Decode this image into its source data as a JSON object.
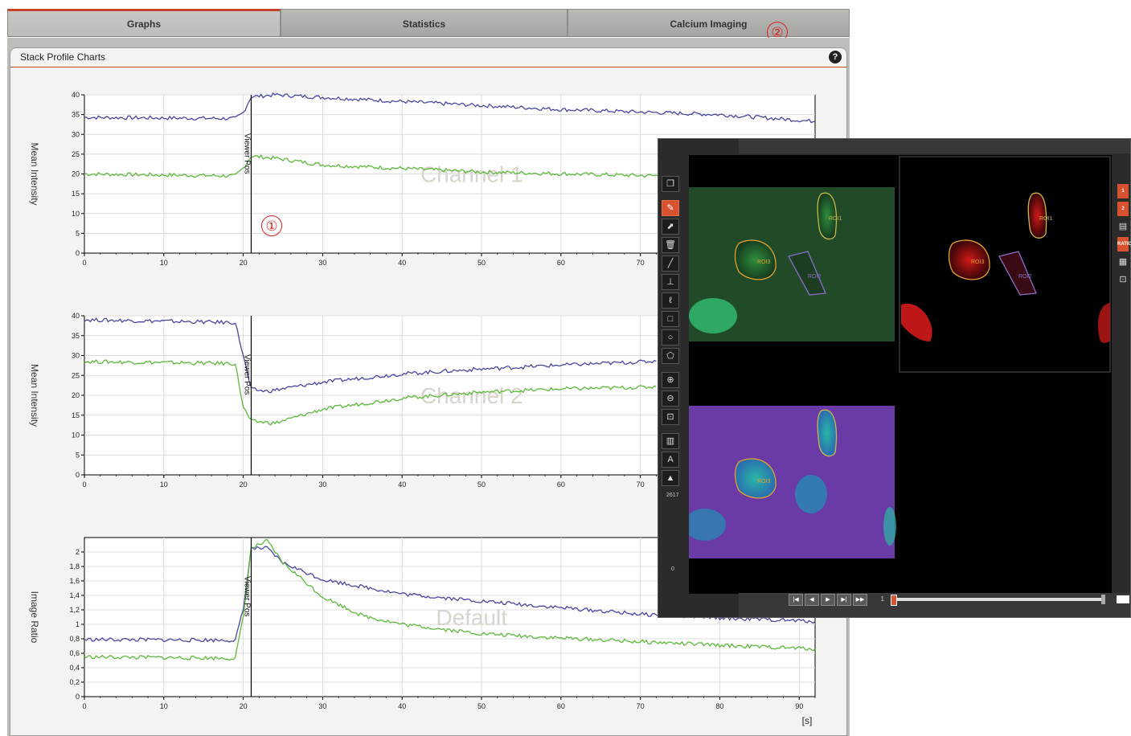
{
  "tabs": [
    {
      "label": "Graphs",
      "active": true
    },
    {
      "label": "Statistics",
      "active": false
    },
    {
      "label": "Calcium Imaging",
      "active": false
    }
  ],
  "markers": {
    "one": "①",
    "two": "②"
  },
  "panel": {
    "title": "Stack Profile Charts",
    "help_icon": "?"
  },
  "colors": {
    "accent": "#c4432c",
    "series_blue": "#4a45a4",
    "series_green": "#5cb83a"
  },
  "chart_data": [
    {
      "type": "line",
      "ylabel": "Mean Intensity",
      "watermark": "Channel 1",
      "cursor_label": "Viewer Pos",
      "cursor_x": 21,
      "xlim": [
        0,
        92
      ],
      "ylim": [
        0,
        40
      ],
      "yticks": [
        0,
        5,
        10,
        15,
        20,
        25,
        30,
        35,
        40
      ],
      "ytick_labels": [
        "0",
        "5",
        "10",
        "15",
        "20",
        "25",
        "30",
        "35",
        "40"
      ],
      "xticks": [
        0,
        10,
        20,
        30,
        40,
        50,
        60,
        70
      ],
      "xtick_labels": [
        "0",
        "10",
        "20",
        "30",
        "40",
        "50",
        "60",
        "70"
      ],
      "series": [
        {
          "color": "#4a45a4",
          "points": [
            [
              0,
              34.3
            ],
            [
              19,
              34.0
            ],
            [
              20,
              35.5
            ],
            [
              21,
              39.5
            ],
            [
              24,
              40.0
            ],
            [
              40,
              38.3
            ],
            [
              60,
              36.3
            ],
            [
              80,
              35.0
            ],
            [
              92,
              33.3
            ]
          ]
        },
        {
          "color": "#5cb83a",
          "points": [
            [
              0,
              20.0
            ],
            [
              19,
              19.5
            ],
            [
              20,
              21.5
            ],
            [
              21,
              24.5
            ],
            [
              24,
              24.0
            ],
            [
              30,
              22.3
            ],
            [
              50,
              20.5
            ],
            [
              70,
              19.6
            ],
            [
              92,
              19.5
            ]
          ]
        }
      ]
    },
    {
      "type": "line",
      "ylabel": "Mean Intensity",
      "watermark": "Channel 2",
      "cursor_label": "Viewer Pos",
      "cursor_x": 21,
      "xlim": [
        0,
        92
      ],
      "ylim": [
        0,
        40
      ],
      "yticks": [
        0,
        5,
        10,
        15,
        20,
        25,
        30,
        35,
        40
      ],
      "ytick_labels": [
        "0",
        "5",
        "10",
        "15",
        "20",
        "25",
        "30",
        "35",
        "40"
      ],
      "xticks": [
        0,
        10,
        20,
        30,
        40,
        50,
        60,
        70
      ],
      "xtick_labels": [
        "0",
        "10",
        "20",
        "30",
        "40",
        "50",
        "60",
        "70"
      ],
      "series": [
        {
          "color": "#4a45a4",
          "points": [
            [
              0,
              39.0
            ],
            [
              19,
              38.3
            ],
            [
              20,
              30.0
            ],
            [
              21,
              21.5
            ],
            [
              23,
              21.0
            ],
            [
              30,
              23.3
            ],
            [
              40,
              25.4
            ],
            [
              50,
              26.6
            ],
            [
              60,
              27.6
            ],
            [
              70,
              28.4
            ],
            [
              72,
              28.6
            ]
          ]
        },
        {
          "color": "#5cb83a",
          "points": [
            [
              0,
              28.5
            ],
            [
              19,
              28.0
            ],
            [
              20,
              17.0
            ],
            [
              21,
              13.5
            ],
            [
              24,
              13.0
            ],
            [
              30,
              16.5
            ],
            [
              40,
              19.3
            ],
            [
              50,
              20.8
            ],
            [
              60,
              21.6
            ],
            [
              70,
              22.0
            ],
            [
              72,
              22.2
            ]
          ]
        }
      ]
    },
    {
      "type": "line",
      "ylabel": "Image Ratio",
      "watermark": "Default",
      "cursor_label": "Viewer Pos",
      "cursor_x": 21,
      "xlabel": "[s]",
      "xlim": [
        0,
        92
      ],
      "ylim": [
        0,
        2.2
      ],
      "yticks": [
        0,
        0.2,
        0.4,
        0.6,
        0.8,
        1,
        1.2,
        1.4,
        1.6,
        1.8,
        2
      ],
      "ytick_labels": [
        "0",
        "0,2",
        "0,4",
        "0,6",
        "0,8",
        "1",
        "1,2",
        "1,4",
        "1,6",
        "1,8",
        "2"
      ],
      "xticks": [
        0,
        10,
        20,
        30,
        40,
        50,
        60,
        70,
        80,
        90
      ],
      "xtick_labels": [
        "0",
        "10",
        "20",
        "30",
        "40",
        "50",
        "60",
        "70",
        "80",
        "90"
      ],
      "series": [
        {
          "color": "#4a45a4",
          "points": [
            [
              0,
              0.79
            ],
            [
              19,
              0.78
            ],
            [
              20,
              1.2
            ],
            [
              21,
              2.05
            ],
            [
              23,
              2.05
            ],
            [
              25,
              1.85
            ],
            [
              30,
              1.62
            ],
            [
              40,
              1.42
            ],
            [
              50,
              1.32
            ],
            [
              60,
              1.23
            ],
            [
              70,
              1.14
            ],
            [
              80,
              1.09
            ],
            [
              92,
              1.04
            ]
          ]
        },
        {
          "color": "#5cb83a",
          "points": [
            [
              0,
              0.55
            ],
            [
              19,
              0.53
            ],
            [
              20,
              1.1
            ],
            [
              21,
              2.05
            ],
            [
              23,
              2.15
            ],
            [
              25,
              1.85
            ],
            [
              30,
              1.38
            ],
            [
              35,
              1.12
            ],
            [
              40,
              1.0
            ],
            [
              50,
              0.87
            ],
            [
              60,
              0.81
            ],
            [
              70,
              0.76
            ],
            [
              80,
              0.71
            ],
            [
              92,
              0.66
            ]
          ]
        }
      ]
    }
  ],
  "imaging": {
    "toolbar_icons": [
      "copy-icon",
      "pencil-icon",
      "roi-pick-icon",
      "trash-icon",
      "line-icon",
      "measure-icon",
      "freehand-icon",
      "rectangle-icon",
      "ellipse-icon",
      "polygon-icon",
      "zoom-in-icon",
      "zoom-out-icon",
      "fit-icon",
      "channels-icon",
      "text-icon",
      "histogram-icon"
    ],
    "lut": {
      "max": "2617",
      "min": "0"
    },
    "rois": [
      {
        "label": "ROI1",
        "color": "#c9b84a"
      },
      {
        "label": "ROI3",
        "color": "#e6a12d"
      },
      {
        "label": "ROI2",
        "color": "#8a70c8"
      }
    ],
    "side_buttons": [
      "1",
      "2",
      "RATIO"
    ],
    "frame": "1"
  }
}
